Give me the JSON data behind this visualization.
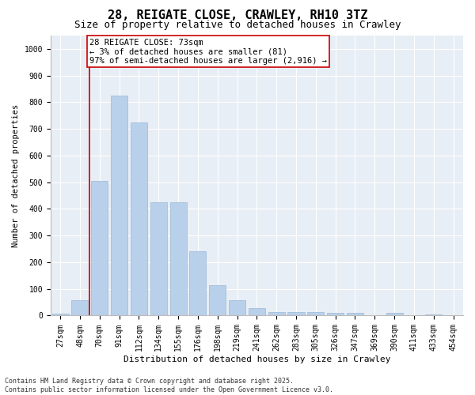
{
  "title": "28, REIGATE CLOSE, CRAWLEY, RH10 3TZ",
  "subtitle": "Size of property relative to detached houses in Crawley",
  "xlabel": "Distribution of detached houses by size in Crawley",
  "ylabel": "Number of detached properties",
  "categories": [
    "27sqm",
    "48sqm",
    "70sqm",
    "91sqm",
    "112sqm",
    "134sqm",
    "155sqm",
    "176sqm",
    "198sqm",
    "219sqm",
    "241sqm",
    "262sqm",
    "283sqm",
    "305sqm",
    "326sqm",
    "347sqm",
    "369sqm",
    "390sqm",
    "411sqm",
    "433sqm",
    "454sqm"
  ],
  "values": [
    8,
    57,
    505,
    825,
    725,
    425,
    425,
    240,
    115,
    57,
    28,
    14,
    14,
    14,
    9,
    9,
    0,
    9,
    0,
    5,
    0
  ],
  "bar_color": "#b8d0ea",
  "bar_edge_color": "#9ab8d8",
  "vline_x": 1.5,
  "vline_color": "#cc0000",
  "annotation_text": "28 REIGATE CLOSE: 73sqm\n← 3% of detached houses are smaller (81)\n97% of semi-detached houses are larger (2,916) →",
  "annotation_box_color": "#ffffff",
  "annotation_box_edge": "#cc0000",
  "ylim": [
    0,
    1050
  ],
  "yticks": [
    0,
    100,
    200,
    300,
    400,
    500,
    600,
    700,
    800,
    900,
    1000
  ],
  "background_color": "#e8eef5",
  "grid_color": "#ffffff",
  "footer": "Contains HM Land Registry data © Crown copyright and database right 2025.\nContains public sector information licensed under the Open Government Licence v3.0.",
  "title_fontsize": 11,
  "subtitle_fontsize": 9,
  "xlabel_fontsize": 8,
  "ylabel_fontsize": 7.5,
  "tick_fontsize": 7,
  "annotation_fontsize": 7.5,
  "footer_fontsize": 6
}
